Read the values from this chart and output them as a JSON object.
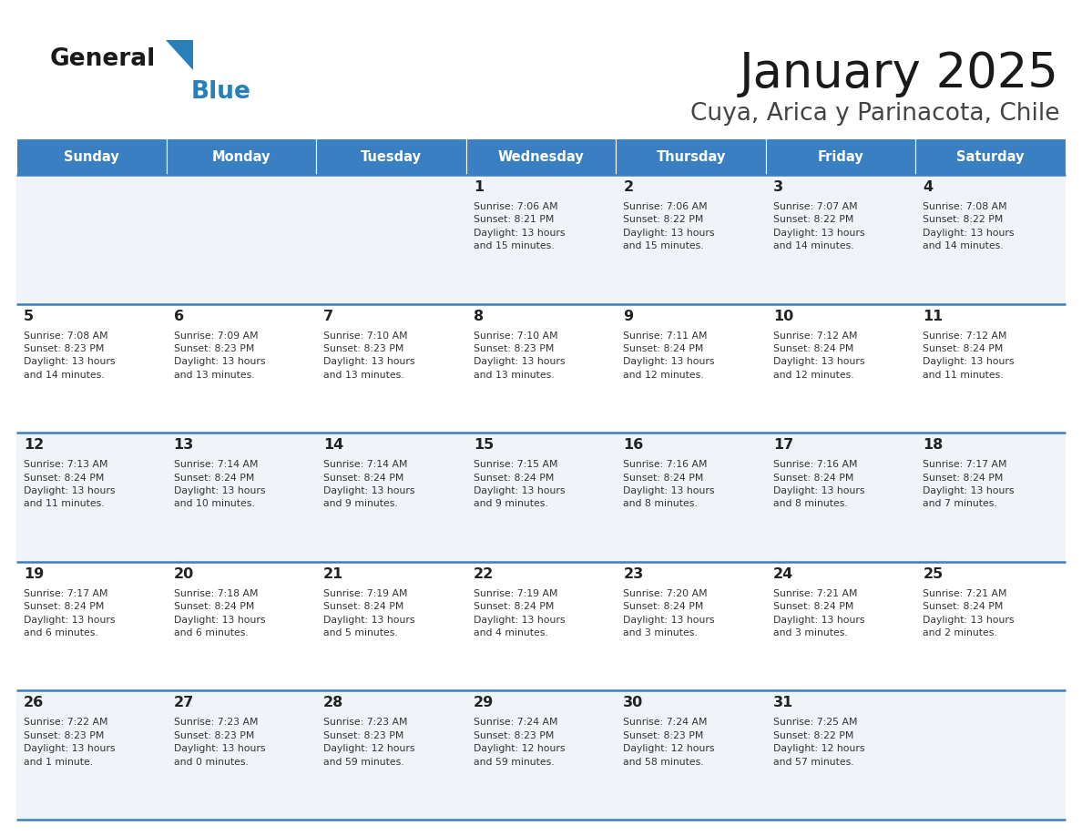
{
  "title": "January 2025",
  "subtitle": "Cuya, Arica y Parinacota, Chile",
  "days_of_week": [
    "Sunday",
    "Monday",
    "Tuesday",
    "Wednesday",
    "Thursday",
    "Friday",
    "Saturday"
  ],
  "header_bg": "#3a7fc1",
  "header_text": "#ffffff",
  "row_bg_odd": "#f0f4f8",
  "row_bg_even": "#ffffff",
  "cell_text_color": "#333333",
  "day_num_color": "#222222",
  "border_color": "#3a7fc1",
  "calendar": [
    [
      {
        "day": null,
        "info": null
      },
      {
        "day": null,
        "info": null
      },
      {
        "day": null,
        "info": null
      },
      {
        "day": 1,
        "info": "Sunrise: 7:06 AM\nSunset: 8:21 PM\nDaylight: 13 hours\nand 15 minutes."
      },
      {
        "day": 2,
        "info": "Sunrise: 7:06 AM\nSunset: 8:22 PM\nDaylight: 13 hours\nand 15 minutes."
      },
      {
        "day": 3,
        "info": "Sunrise: 7:07 AM\nSunset: 8:22 PM\nDaylight: 13 hours\nand 14 minutes."
      },
      {
        "day": 4,
        "info": "Sunrise: 7:08 AM\nSunset: 8:22 PM\nDaylight: 13 hours\nand 14 minutes."
      }
    ],
    [
      {
        "day": 5,
        "info": "Sunrise: 7:08 AM\nSunset: 8:23 PM\nDaylight: 13 hours\nand 14 minutes."
      },
      {
        "day": 6,
        "info": "Sunrise: 7:09 AM\nSunset: 8:23 PM\nDaylight: 13 hours\nand 13 minutes."
      },
      {
        "day": 7,
        "info": "Sunrise: 7:10 AM\nSunset: 8:23 PM\nDaylight: 13 hours\nand 13 minutes."
      },
      {
        "day": 8,
        "info": "Sunrise: 7:10 AM\nSunset: 8:23 PM\nDaylight: 13 hours\nand 13 minutes."
      },
      {
        "day": 9,
        "info": "Sunrise: 7:11 AM\nSunset: 8:24 PM\nDaylight: 13 hours\nand 12 minutes."
      },
      {
        "day": 10,
        "info": "Sunrise: 7:12 AM\nSunset: 8:24 PM\nDaylight: 13 hours\nand 12 minutes."
      },
      {
        "day": 11,
        "info": "Sunrise: 7:12 AM\nSunset: 8:24 PM\nDaylight: 13 hours\nand 11 minutes."
      }
    ],
    [
      {
        "day": 12,
        "info": "Sunrise: 7:13 AM\nSunset: 8:24 PM\nDaylight: 13 hours\nand 11 minutes."
      },
      {
        "day": 13,
        "info": "Sunrise: 7:14 AM\nSunset: 8:24 PM\nDaylight: 13 hours\nand 10 minutes."
      },
      {
        "day": 14,
        "info": "Sunrise: 7:14 AM\nSunset: 8:24 PM\nDaylight: 13 hours\nand 9 minutes."
      },
      {
        "day": 15,
        "info": "Sunrise: 7:15 AM\nSunset: 8:24 PM\nDaylight: 13 hours\nand 9 minutes."
      },
      {
        "day": 16,
        "info": "Sunrise: 7:16 AM\nSunset: 8:24 PM\nDaylight: 13 hours\nand 8 minutes."
      },
      {
        "day": 17,
        "info": "Sunrise: 7:16 AM\nSunset: 8:24 PM\nDaylight: 13 hours\nand 8 minutes."
      },
      {
        "day": 18,
        "info": "Sunrise: 7:17 AM\nSunset: 8:24 PM\nDaylight: 13 hours\nand 7 minutes."
      }
    ],
    [
      {
        "day": 19,
        "info": "Sunrise: 7:17 AM\nSunset: 8:24 PM\nDaylight: 13 hours\nand 6 minutes."
      },
      {
        "day": 20,
        "info": "Sunrise: 7:18 AM\nSunset: 8:24 PM\nDaylight: 13 hours\nand 6 minutes."
      },
      {
        "day": 21,
        "info": "Sunrise: 7:19 AM\nSunset: 8:24 PM\nDaylight: 13 hours\nand 5 minutes."
      },
      {
        "day": 22,
        "info": "Sunrise: 7:19 AM\nSunset: 8:24 PM\nDaylight: 13 hours\nand 4 minutes."
      },
      {
        "day": 23,
        "info": "Sunrise: 7:20 AM\nSunset: 8:24 PM\nDaylight: 13 hours\nand 3 minutes."
      },
      {
        "day": 24,
        "info": "Sunrise: 7:21 AM\nSunset: 8:24 PM\nDaylight: 13 hours\nand 3 minutes."
      },
      {
        "day": 25,
        "info": "Sunrise: 7:21 AM\nSunset: 8:24 PM\nDaylight: 13 hours\nand 2 minutes."
      }
    ],
    [
      {
        "day": 26,
        "info": "Sunrise: 7:22 AM\nSunset: 8:23 PM\nDaylight: 13 hours\nand 1 minute."
      },
      {
        "day": 27,
        "info": "Sunrise: 7:23 AM\nSunset: 8:23 PM\nDaylight: 13 hours\nand 0 minutes."
      },
      {
        "day": 28,
        "info": "Sunrise: 7:23 AM\nSunset: 8:23 PM\nDaylight: 12 hours\nand 59 minutes."
      },
      {
        "day": 29,
        "info": "Sunrise: 7:24 AM\nSunset: 8:23 PM\nDaylight: 12 hours\nand 59 minutes."
      },
      {
        "day": 30,
        "info": "Sunrise: 7:24 AM\nSunset: 8:23 PM\nDaylight: 12 hours\nand 58 minutes."
      },
      {
        "day": 31,
        "info": "Sunrise: 7:25 AM\nSunset: 8:22 PM\nDaylight: 12 hours\nand 57 minutes."
      },
      {
        "day": null,
        "info": null
      }
    ]
  ],
  "logo_general_color": "#1a1a1a",
  "logo_blue_color": "#2980b9",
  "logo_triangle_color": "#2980b9",
  "fig_width": 11.88,
  "fig_height": 9.18,
  "dpi": 100
}
